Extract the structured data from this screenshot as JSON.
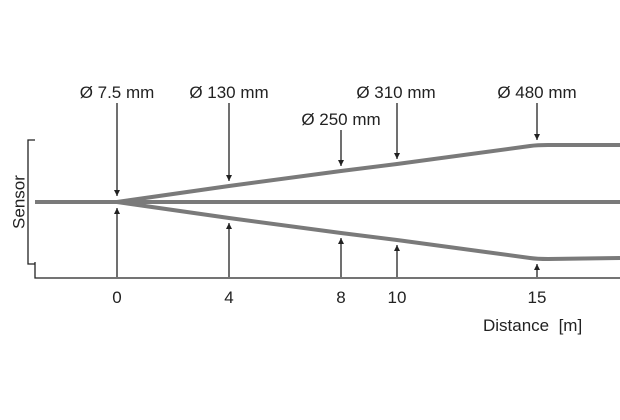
{
  "sensor_label": "Sensor",
  "spot_labels": [
    "Ø 7.5 mm",
    "Ø 130 mm",
    "Ø 250 mm",
    "Ø 310 mm",
    "Ø 480 mm"
  ],
  "distance_labels": [
    "0",
    "4",
    "8",
    "10",
    "15"
  ],
  "axis_label": "Distance  [m]"
}
